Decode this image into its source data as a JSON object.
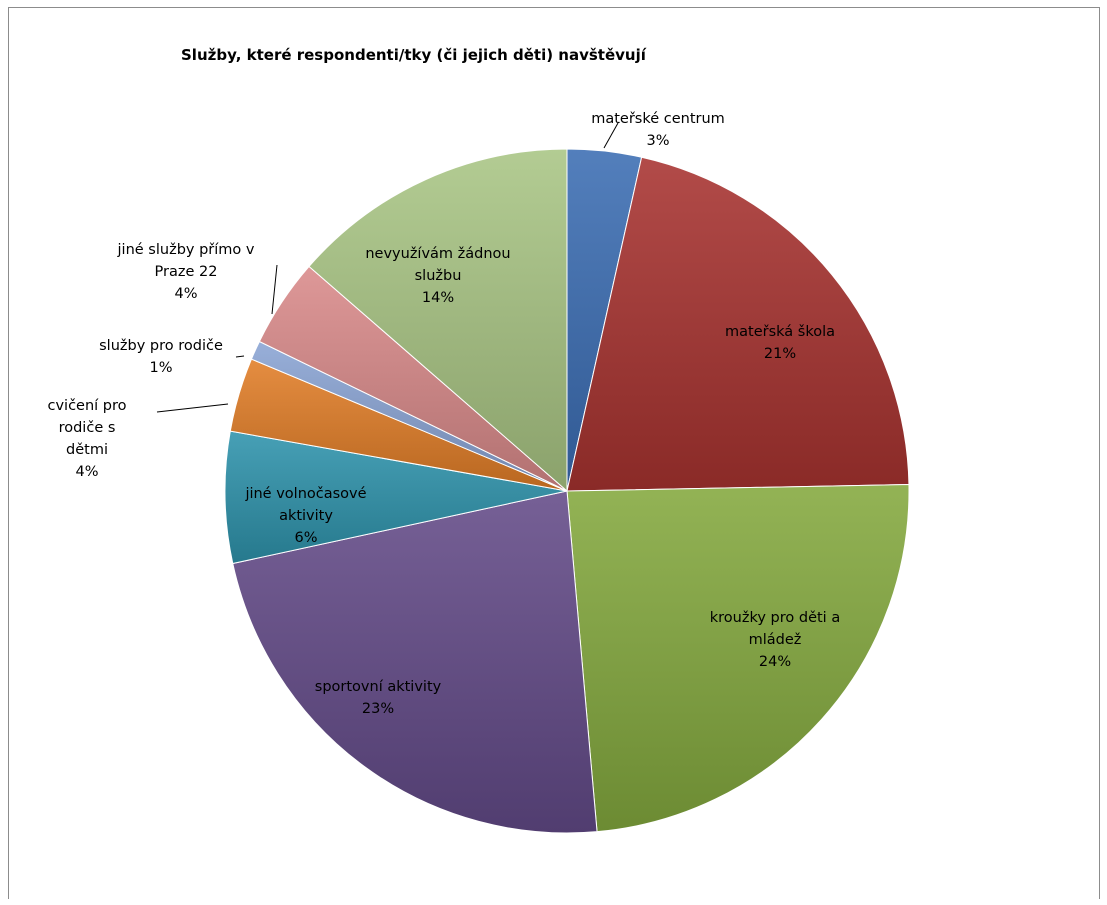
{
  "chart_data": {
    "type": "pie",
    "title": "Služby, které respondenti/tky (či jejich děti) navštěvují",
    "slices": [
      {
        "label": [
          "mateřské centrum"
        ],
        "pct_text": "3%",
        "value": 3.5,
        "color": "#3b6db3"
      },
      {
        "label": [
          "mateřská škola"
        ],
        "pct_text": "21%",
        "value": 21.2,
        "color": "#a83330"
      },
      {
        "label": [
          "kroužky pro děti a",
          "mládež"
        ],
        "pct_text": "24%",
        "value": 23.9,
        "color": "#84a93e"
      },
      {
        "label": [
          "sportovní aktivity"
        ],
        "pct_text": "23%",
        "value": 23.0,
        "color": "#634a88"
      },
      {
        "label": [
          "jiné volnočasové",
          "aktivity"
        ],
        "pct_text": "6%",
        "value": 6.2,
        "color": "#2e93ac"
      },
      {
        "label": [
          "cvičení pro",
          "rodiče s",
          "dětmi"
        ],
        "pct_text": "4%",
        "value": 3.5,
        "color": "#e27d27"
      },
      {
        "label": [
          "služby pro rodiče"
        ],
        "pct_text": "1%",
        "value": 0.9,
        "color": "#8aa4d4"
      },
      {
        "label": [
          "jiné služby přímo v",
          "Praze 22"
        ],
        "pct_text": "4%",
        "value": 4.2,
        "color": "#d98a8a"
      },
      {
        "label": [
          "nevyužívám žádnou",
          "službu"
        ],
        "pct_text": "14%",
        "value": 13.6,
        "color": "#a9c584"
      }
    ],
    "legend": "none",
    "data_labels": "category and percent"
  }
}
